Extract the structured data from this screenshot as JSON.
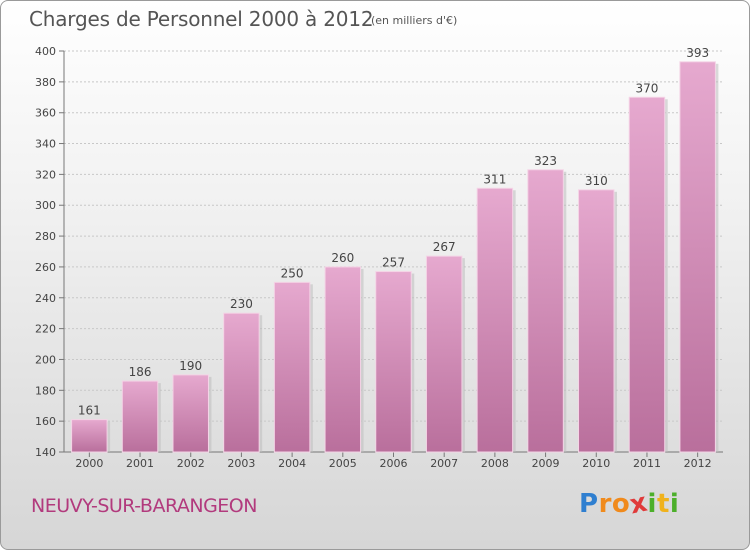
{
  "chart_data": {
    "type": "bar",
    "title": "Charges de Personnel 2000 à 2012",
    "subtitle": "(en milliers d'€)",
    "categories": [
      "2000",
      "2001",
      "2002",
      "2003",
      "2004",
      "2005",
      "2006",
      "2007",
      "2008",
      "2009",
      "2010",
      "2011",
      "2012"
    ],
    "values": [
      161,
      186,
      190,
      230,
      250,
      260,
      257,
      267,
      311,
      323,
      310,
      370,
      393
    ],
    "ylim": [
      140,
      400
    ],
    "yticks": [
      140,
      160,
      180,
      200,
      220,
      240,
      260,
      280,
      300,
      320,
      340,
      360,
      380,
      400
    ],
    "grid": true,
    "bar_color": "#d68ab6",
    "xlabel": "",
    "ylabel": ""
  },
  "footer": {
    "town": "NEUVY-SUR-BARANGEON",
    "logo": [
      "P",
      "r",
      "o",
      "x",
      "i",
      "t",
      "i"
    ],
    "logo_colors": [
      "#2f7fd0",
      "#f08a1c",
      "#f08a1c",
      "#e03a3a",
      "#4caf2a",
      "#f0b21c",
      "#4caf2a"
    ]
  }
}
